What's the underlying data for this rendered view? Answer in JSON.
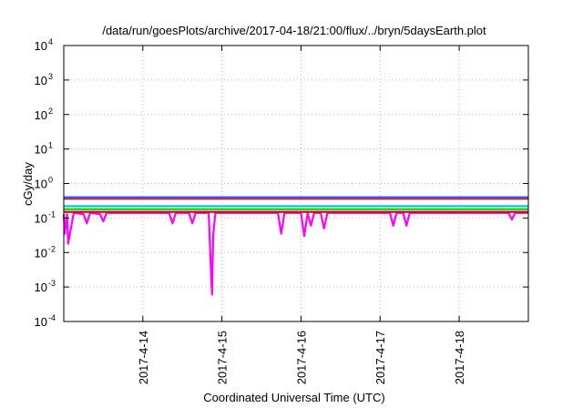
{
  "chart_data": {
    "type": "line",
    "title": "/data/run/goesPlots/archive/2017-04-18/21:00/flux/../bryn/5daysEarth.plot",
    "xlabel": "Coordinated Universal Time (UTC)",
    "ylabel": "cGy/day",
    "yscale": "log",
    "ylim": [
      0.0001,
      10000
    ],
    "xlim": [
      "2017-04-13 00:00",
      "2017-04-18 21:00"
    ],
    "grid": true,
    "y_ticks": [
      {
        "base": "10",
        "exp": "-4"
      },
      {
        "base": "10",
        "exp": "-3"
      },
      {
        "base": "10",
        "exp": "-2"
      },
      {
        "base": "10",
        "exp": "-1"
      },
      {
        "base": "10",
        "exp": "0"
      },
      {
        "base": "10",
        "exp": "1"
      },
      {
        "base": "10",
        "exp": "2"
      },
      {
        "base": "10",
        "exp": "3"
      },
      {
        "base": "10",
        "exp": "4"
      }
    ],
    "x_ticks": [
      {
        "label": "2017-4-14",
        "date": "2017-04-14 00:00"
      },
      {
        "label": "2017-4-15",
        "date": "2017-04-15 00:00"
      },
      {
        "label": "2017-4-16",
        "date": "2017-04-16 00:00"
      },
      {
        "label": "2017-4-17",
        "date": "2017-04-17 00:00"
      },
      {
        "label": "2017-4-18",
        "date": "2017-04-18 00:00"
      }
    ],
    "series": [
      {
        "color": "#ff00ff",
        "x": [
          "2017-04-13 00:00",
          "2017-04-13 00:20",
          "2017-04-13 01:00",
          "2017-04-13 01:20",
          "2017-04-13 03:00",
          "2017-04-13 06:00",
          "2017-04-13 07:00",
          "2017-04-13 08:00",
          "2017-04-13 11:00",
          "2017-04-13 12:00",
          "2017-04-13 13:00",
          "2017-04-13 18:00",
          "2017-04-14 00:00",
          "2017-04-14 06:00",
          "2017-04-14 08:00",
          "2017-04-14 09:00",
          "2017-04-14 10:00",
          "2017-04-14 12:00",
          "2017-04-14 14:00",
          "2017-04-14 15:00",
          "2017-04-14 16:00",
          "2017-04-14 18:00",
          "2017-04-14 20:00",
          "2017-04-14 20:40",
          "2017-04-14 21:00",
          "2017-04-14 21:20",
          "2017-04-14 22:00",
          "2017-04-15 00:00",
          "2017-04-15 06:00",
          "2017-04-15 12:00",
          "2017-04-15 17:00",
          "2017-04-15 18:00",
          "2017-04-15 19:00",
          "2017-04-15 23:00",
          "2017-04-16 00:00",
          "2017-04-16 01:00",
          "2017-04-16 02:00",
          "2017-04-16 03:00",
          "2017-04-16 04:00",
          "2017-04-16 06:00",
          "2017-04-16 07:00",
          "2017-04-16 08:00",
          "2017-04-16 12:00",
          "2017-04-16 18:00",
          "2017-04-17 00:00",
          "2017-04-17 03:00",
          "2017-04-17 04:00",
          "2017-04-17 05:00",
          "2017-04-17 07:00",
          "2017-04-17 08:00",
          "2017-04-17 09:00",
          "2017-04-17 12:00",
          "2017-04-17 18:00",
          "2017-04-18 00:00",
          "2017-04-18 06:00",
          "2017-04-18 12:00",
          "2017-04-18 15:00",
          "2017-04-18 16:00",
          "2017-04-18 17:00",
          "2017-04-18 21:00"
        ],
        "values": [
          0.13,
          0.035,
          0.13,
          0.018,
          0.14,
          0.13,
          0.07,
          0.14,
          0.13,
          0.08,
          0.14,
          0.14,
          0.14,
          0.14,
          0.14,
          0.07,
          0.14,
          0.14,
          0.14,
          0.07,
          0.14,
          0.14,
          0.14,
          0.003,
          0.0006,
          0.03,
          0.14,
          0.14,
          0.14,
          0.14,
          0.14,
          0.035,
          0.14,
          0.14,
          0.14,
          0.03,
          0.14,
          0.06,
          0.14,
          0.14,
          0.05,
          0.14,
          0.14,
          0.14,
          0.14,
          0.14,
          0.06,
          0.14,
          0.14,
          0.06,
          0.14,
          0.14,
          0.14,
          0.14,
          0.14,
          0.14,
          0.14,
          0.09,
          0.14,
          0.14
        ]
      },
      {
        "color": "#cc0000",
        "x": [
          "2017-04-13 00:00",
          "2017-04-13 12:00",
          "2017-04-14 00:00",
          "2017-04-14 12:00",
          "2017-04-15 00:00",
          "2017-04-15 12:00",
          "2017-04-16 00:00",
          "2017-04-16 12:00",
          "2017-04-17 00:00",
          "2017-04-17 12:00",
          "2017-04-18 00:00",
          "2017-04-18 12:00",
          "2017-04-18 21:00"
        ],
        "values": [
          0.15,
          0.15,
          0.15,
          0.15,
          0.15,
          0.15,
          0.15,
          0.15,
          0.15,
          0.15,
          0.15,
          0.15,
          0.15
        ]
      },
      {
        "color": "#00cc00",
        "x": [
          "2017-04-13 00:00",
          "2017-04-13 12:00",
          "2017-04-14 00:00",
          "2017-04-14 12:00",
          "2017-04-15 00:00",
          "2017-04-15 12:00",
          "2017-04-16 00:00",
          "2017-04-16 12:00",
          "2017-04-17 00:00",
          "2017-04-17 12:00",
          "2017-04-18 00:00",
          "2017-04-18 12:00",
          "2017-04-18 21:00"
        ],
        "values": [
          0.18,
          0.18,
          0.18,
          0.18,
          0.18,
          0.18,
          0.18,
          0.18,
          0.18,
          0.18,
          0.18,
          0.18,
          0.18
        ]
      },
      {
        "color": "#00cccc",
        "x": [
          "2017-04-13 00:00",
          "2017-04-13 12:00",
          "2017-04-14 00:00",
          "2017-04-14 12:00",
          "2017-04-15 00:00",
          "2017-04-15 12:00",
          "2017-04-16 00:00",
          "2017-04-16 12:00",
          "2017-04-17 00:00",
          "2017-04-17 12:00",
          "2017-04-18 00:00",
          "2017-04-18 12:00",
          "2017-04-18 21:00"
        ],
        "values": [
          0.22,
          0.22,
          0.22,
          0.22,
          0.22,
          0.22,
          0.22,
          0.22,
          0.22,
          0.22,
          0.22,
          0.22,
          0.22
        ]
      },
      {
        "color": "#dd2222",
        "x": [
          "2017-04-13 00:00",
          "2017-04-13 12:00",
          "2017-04-14 00:00",
          "2017-04-14 12:00",
          "2017-04-15 00:00",
          "2017-04-15 12:00",
          "2017-04-16 00:00",
          "2017-04-16 12:00",
          "2017-04-17 00:00",
          "2017-04-17 12:00",
          "2017-04-18 00:00",
          "2017-04-18 12:00",
          "2017-04-18 21:00"
        ],
        "values": [
          0.36,
          0.36,
          0.36,
          0.36,
          0.36,
          0.36,
          0.36,
          0.36,
          0.36,
          0.36,
          0.36,
          0.36,
          0.36
        ]
      },
      {
        "color": "#3355ff",
        "x": [
          "2017-04-13 00:00",
          "2017-04-13 12:00",
          "2017-04-14 00:00",
          "2017-04-14 12:00",
          "2017-04-15 00:00",
          "2017-04-15 12:00",
          "2017-04-16 00:00",
          "2017-04-16 12:00",
          "2017-04-17 00:00",
          "2017-04-17 12:00",
          "2017-04-18 00:00",
          "2017-04-18 12:00",
          "2017-04-18 21:00"
        ],
        "values": [
          0.4,
          0.4,
          0.4,
          0.4,
          0.4,
          0.4,
          0.4,
          0.4,
          0.4,
          0.4,
          0.4,
          0.4,
          0.4
        ]
      }
    ]
  }
}
